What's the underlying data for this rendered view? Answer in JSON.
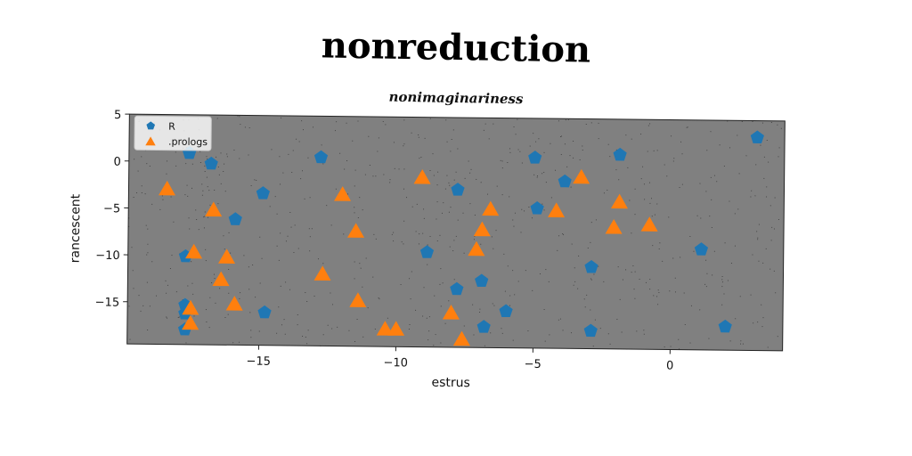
{
  "title": "nonreduction",
  "subtitle": "nonimaginariness",
  "chart_data": {
    "type": "scatter",
    "title": "nonimaginariness",
    "xlabel": "estrus",
    "ylabel": "rancescent",
    "xlim": [
      -19.8,
      4.1
    ],
    "ylim": [
      -19.5,
      5
    ],
    "xticks": [
      -15,
      -10,
      -5,
      0
    ],
    "xtick_labels": [
      "−15",
      "−10",
      "−5",
      "0"
    ],
    "yticks": [
      5,
      0,
      -5,
      -10,
      -15
    ],
    "ytick_labels": [
      "5",
      "0",
      "−5",
      "−10",
      "−15"
    ],
    "grid": false,
    "legend_position": "top-left",
    "plot_background": "#808080",
    "series": [
      {
        "name": "R",
        "marker": "pentagon",
        "color": "#1f77b4",
        "x": [
          -17.6,
          -16.8,
          -15.9,
          -14.9,
          -12.8,
          -17.7,
          -17.7,
          -17.7,
          -17.7,
          -14.8,
          -8.9,
          -7.8,
          -6.9,
          -6.8,
          -7.8,
          -6.0,
          -5.0,
          -4.9,
          -3.9,
          -2.9,
          -2.9,
          -1.9,
          1.1,
          2.0,
          3.1
        ],
        "y": [
          0.9,
          -0.2,
          -6.1,
          -3.3,
          0.6,
          -10.1,
          -15.3,
          -16.2,
          -17.9,
          -16.0,
          -9.4,
          -2.7,
          -12.4,
          -17.3,
          -13.3,
          -15.6,
          0.8,
          -4.6,
          -1.7,
          -10.8,
          -17.6,
          1.2,
          -8.8,
          -17.0,
          3.2
        ]
      },
      {
        "name": ".prologs",
        "marker": "triangle",
        "color": "#ff7f0e",
        "x": [
          -18.4,
          -16.7,
          -17.4,
          -16.2,
          -16.4,
          -15.9,
          -17.5,
          -17.5,
          -12.7,
          -12.0,
          -11.5,
          -11.4,
          -10.4,
          -10.0,
          -9.1,
          -8.0,
          -7.6,
          -7.1,
          -6.9,
          -6.6,
          -4.2,
          -3.3,
          -2.1,
          -1.9,
          -0.8
        ],
        "y": [
          -3.0,
          -5.2,
          -9.7,
          -10.2,
          -12.6,
          -15.2,
          -15.7,
          -17.3,
          -11.9,
          -3.4,
          -7.3,
          -14.7,
          -17.7,
          -17.7,
          -1.5,
          -15.9,
          -18.7,
          -9.1,
          -7.0,
          -4.8,
          -4.9,
          -1.3,
          -6.6,
          -3.9,
          -6.3
        ]
      }
    ]
  }
}
